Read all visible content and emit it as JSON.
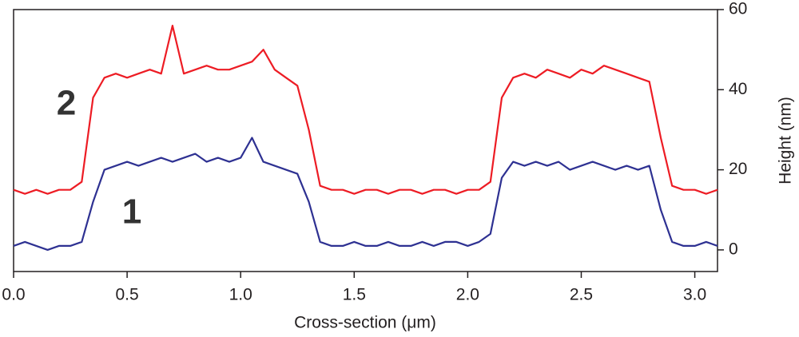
{
  "chart_data": {
    "type": "line",
    "xlabel": "Cross-section (μm)",
    "ylabel": "Height (nm)",
    "x": [
      0,
      0.05,
      0.1,
      0.15,
      0.2,
      0.25,
      0.3,
      0.35,
      0.4,
      0.45,
      0.5,
      0.55,
      0.6,
      0.65,
      0.7,
      0.75,
      0.8,
      0.85,
      0.9,
      0.95,
      1.0,
      1.05,
      1.1,
      1.15,
      1.2,
      1.25,
      1.3,
      1.35,
      1.4,
      1.45,
      1.5,
      1.55,
      1.6,
      1.65,
      1.7,
      1.75,
      1.8,
      1.85,
      1.9,
      1.95,
      2.0,
      2.05,
      2.1,
      2.15,
      2.2,
      2.25,
      2.3,
      2.35,
      2.4,
      2.45,
      2.5,
      2.55,
      2.6,
      2.65,
      2.7,
      2.75,
      2.8,
      2.85,
      2.9,
      2.95,
      3.0,
      3.05,
      3.1
    ],
    "series": [
      {
        "name": "1",
        "color": "#2e3192",
        "values": [
          1,
          2,
          1,
          0,
          1,
          1,
          2,
          12,
          20,
          21,
          22,
          21,
          22,
          23,
          22,
          23,
          24,
          22,
          23,
          22,
          23,
          28,
          22,
          21,
          20,
          19,
          12,
          2,
          1,
          1,
          2,
          1,
          1,
          2,
          1,
          1,
          2,
          1,
          2,
          2,
          1,
          2,
          4,
          18,
          22,
          21,
          22,
          21,
          22,
          20,
          21,
          22,
          21,
          20,
          21,
          20,
          21,
          10,
          2,
          1,
          1,
          2,
          1
        ]
      },
      {
        "name": "2",
        "color": "#ed1c24",
        "values": [
          15,
          14,
          15,
          14,
          15,
          15,
          17,
          38,
          43,
          44,
          43,
          44,
          45,
          44,
          56,
          44,
          45,
          46,
          45,
          45,
          46,
          47,
          50,
          45,
          43,
          41,
          30,
          16,
          15,
          15,
          14,
          15,
          15,
          14,
          15,
          15,
          14,
          15,
          15,
          14,
          15,
          15,
          17,
          38,
          43,
          44,
          43,
          45,
          44,
          43,
          45,
          44,
          46,
          45,
          44,
          43,
          42,
          28,
          16,
          15,
          15,
          14,
          15
        ]
      }
    ],
    "annotations": [
      "2",
      "1"
    ],
    "xlim": [
      0,
      3.1
    ],
    "ylim": [
      -5.4,
      60
    ],
    "xticks": [
      {
        "value": 0,
        "label": "0.0"
      },
      0.5,
      {
        "value": 1,
        "label": "1.0"
      },
      1.5,
      {
        "value": 2,
        "label": "2.0"
      },
      2.5,
      {
        "value": 3,
        "label": "3.0"
      }
    ],
    "yticks": [
      0,
      20,
      40,
      60
    ],
    "yaxis_side": "right",
    "grid": false
  }
}
